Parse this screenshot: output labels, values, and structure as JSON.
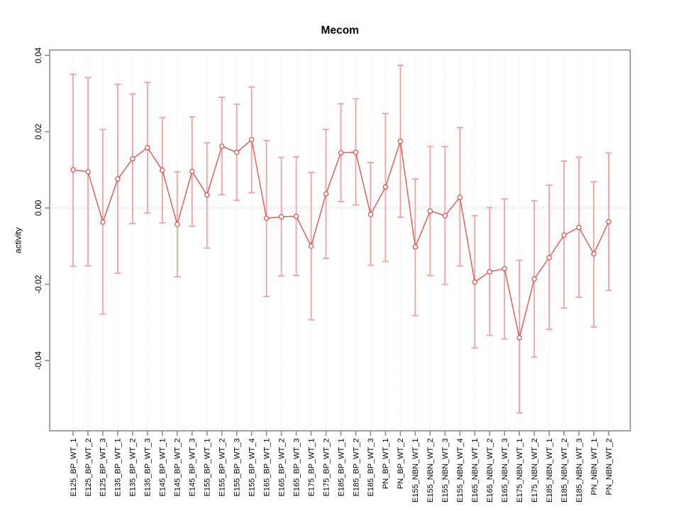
{
  "page_title": "Mecom",
  "chart_data": {
    "type": "scatter",
    "subtype": "point-estimates-with-error-bars",
    "title": "Mecom",
    "xlabel": "",
    "ylabel": "activity",
    "legend": "none",
    "grid": {
      "vertical": "dotted",
      "zero_line": "dotted",
      "horizontal": "zero-only"
    },
    "ylim": [
      -0.0584,
      0.0414
    ],
    "y_ticks": [
      "0.04",
      "0.02",
      "0.00",
      "-0.02",
      "-0.04"
    ],
    "y_tick_values": [
      0.04,
      0.02,
      0.0,
      -0.02,
      -0.04
    ],
    "categories": [
      "E125_BP_WT_1",
      "E125_BP_WT_2",
      "E125_BP_WT_3",
      "E135_BP_WT_1",
      "E135_BP_WT_2",
      "E135_BP_WT_3",
      "E145_BP_WT_1",
      "E145_BP_WT_2",
      "E145_BP_WT_3",
      "E155_BP_WT_1",
      "E155_BP_WT_2",
      "E155_BP_WT_3",
      "E155_BP_WT_4",
      "E165_BP_WT_1",
      "E165_BP_WT_2",
      "E165_BP_WT_3",
      "E175_BP_WT_1",
      "E175_BP_WT_2",
      "E185_BP_WT_1",
      "E185_BP_WT_2",
      "E185_BP_WT_3",
      "PN_BP_WT_1",
      "PN_BP_WT_2",
      "E155_NBN_WT_1",
      "E155_NBN_WT_2",
      "E155_NBN_WT_3",
      "E155_NBN_WT_4",
      "E165_NBN_WT_1",
      "E165_NBN_WT_2",
      "E165_NBN_WT_3",
      "E175_NBN_WT_1",
      "E175_NBN_WT_2",
      "E185_NBN_WT_1",
      "E185_NBN_WT_2",
      "E185_NBN_WT_3",
      "PN_NBN_WT_1",
      "PN_NBN_WT_2"
    ],
    "series": [
      {
        "name": "activity",
        "center": [
          0.01,
          0.0095,
          -0.0037,
          0.0076,
          0.0129,
          0.0158,
          0.0099,
          -0.0043,
          0.0096,
          0.0034,
          0.0162,
          0.0146,
          0.0179,
          -0.0027,
          -0.0023,
          -0.0022,
          -0.01,
          0.0037,
          0.0145,
          0.0146,
          -0.0017,
          0.0055,
          0.0175,
          -0.0102,
          -0.0008,
          -0.002,
          0.0028,
          -0.0194,
          -0.0167,
          -0.0159,
          -0.034,
          -0.0186,
          -0.013,
          -0.0071,
          -0.0051,
          -0.012,
          -0.0036
        ],
        "ci_lower": [
          -0.0153,
          -0.0152,
          -0.0278,
          -0.0171,
          -0.0041,
          -0.0013,
          -0.0039,
          -0.018,
          -0.0048,
          -0.0105,
          0.0035,
          0.002,
          0.004,
          -0.0232,
          -0.0178,
          -0.0177,
          -0.0293,
          -0.0132,
          0.0017,
          0.0008,
          -0.015,
          -0.014,
          -0.0024,
          -0.0282,
          -0.0177,
          -0.02,
          -0.0152,
          -0.0367,
          -0.0334,
          -0.0343,
          -0.0537,
          -0.0391,
          -0.0318,
          -0.0262,
          -0.0234,
          -0.0312,
          -0.0216
        ],
        "ci_upper": [
          0.0351,
          0.0342,
          0.0206,
          0.0324,
          0.0299,
          0.0329,
          0.0237,
          0.0095,
          0.0239,
          0.0171,
          0.029,
          0.0272,
          0.0317,
          0.0177,
          0.0133,
          0.0134,
          0.0093,
          0.0206,
          0.0273,
          0.0286,
          0.0119,
          0.0248,
          0.0374,
          0.0076,
          0.0161,
          0.0161,
          0.0211,
          -0.002,
          0.0001,
          0.0024,
          -0.0137,
          0.0019,
          0.006,
          0.0123,
          0.0133,
          0.0069,
          0.0144
        ]
      }
    ],
    "colors": {
      "point": "#e64a44",
      "line": "#e64a44",
      "whisker": "#f4a1a1",
      "grid": "#e2e2e2",
      "zero_line": "#bbbbbb",
      "axis": "#8d8d8d",
      "text": "#000000",
      "background": "#ffffff"
    }
  }
}
